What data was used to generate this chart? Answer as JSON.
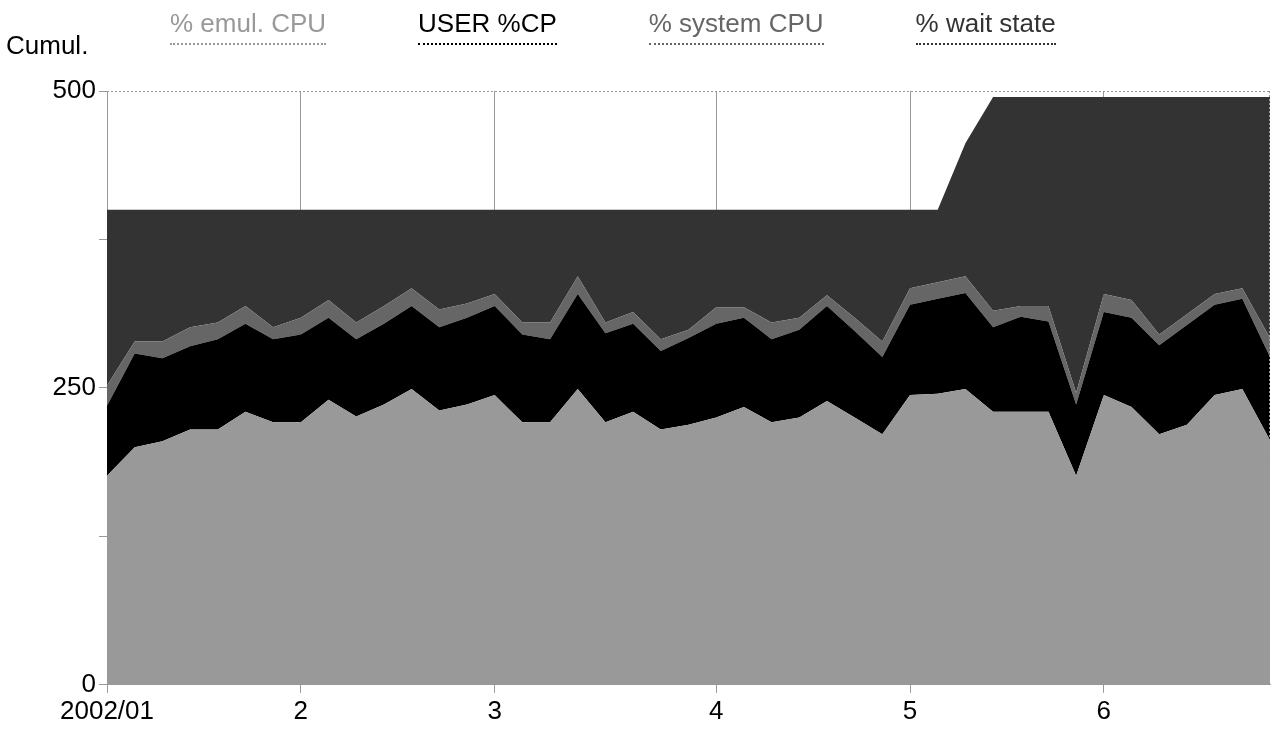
{
  "chart_data": {
    "type": "area",
    "ylabel": "Cumul.",
    "stacked": true,
    "legend": "top",
    "grid": "x",
    "categories": [
      "2002/01",
      null,
      null,
      null,
      null,
      null,
      null,
      "2",
      null,
      null,
      null,
      null,
      null,
      null,
      "3",
      null,
      null,
      null,
      null,
      null,
      null,
      null,
      "4",
      null,
      null,
      null,
      null,
      null,
      null,
      "5",
      null,
      null,
      null,
      null,
      null,
      null,
      "6",
      null,
      null,
      null,
      null,
      null,
      null
    ],
    "ylim": [
      0,
      500
    ],
    "yticks": [
      0,
      {
        "value": 125,
        "label": null
      },
      250,
      {
        "value": 375,
        "label": null
      },
      500
    ],
    "series": [
      {
        "name": "% emul. CPU",
        "color": "#999999",
        "values": [
          176,
          200,
          205,
          215,
          215,
          230,
          221,
          221,
          240,
          226,
          236,
          249,
          231,
          236,
          244,
          221,
          221,
          249,
          221,
          230,
          215,
          219,
          225,
          234,
          221,
          225,
          239,
          225,
          211,
          244,
          245,
          249,
          230,
          230,
          230,
          176,
          244,
          234,
          211,
          219,
          244,
          249,
          206
        ]
      },
      {
        "name": "USER %CP",
        "color": "#000000",
        "values": [
          59,
          79,
          70,
          70,
          76,
          74,
          70,
          74,
          69,
          65,
          68,
          70,
          70,
          73,
          75,
          74,
          70,
          80,
          75,
          74,
          66,
          73,
          79,
          75,
          70,
          74,
          80,
          73,
          65,
          76,
          80,
          81,
          71,
          80,
          76,
          60,
          70,
          75,
          75,
          84,
          76,
          76,
          70
        ]
      },
      {
        "name": "% system CPU",
        "color": "#666666",
        "values": [
          17,
          10,
          14,
          16,
          14,
          15,
          10,
          14,
          15,
          14,
          15,
          15,
          15,
          12,
          10,
          10,
          14,
          15,
          9,
          10,
          10,
          7,
          14,
          9,
          14,
          10,
          9,
          11,
          13,
          14,
          14,
          14,
          14,
          9,
          13,
          10,
          15,
          15,
          9,
          9,
          9,
          9,
          16
        ]
      },
      {
        "name": "% wait state",
        "color": "#333333",
        "values": [
          148,
          111,
          111,
          99,
          95,
          81,
          99,
          91,
          76,
          95,
          81,
          66,
          84,
          79,
          71,
          95,
          95,
          56,
          95,
          86,
          109,
          101,
          82,
          82,
          95,
          91,
          72,
          91,
          111,
          66,
          61,
          112,
          180,
          176,
          176,
          249,
          166,
          171,
          200,
          183,
          166,
          161,
          203
        ]
      }
    ]
  }
}
